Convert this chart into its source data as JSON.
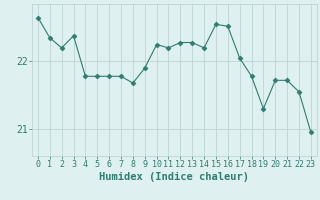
{
  "x": [
    0,
    1,
    2,
    3,
    4,
    5,
    6,
    7,
    8,
    9,
    10,
    11,
    12,
    13,
    14,
    15,
    16,
    17,
    18,
    19,
    20,
    21,
    22,
    23
  ],
  "y": [
    22.65,
    22.35,
    22.2,
    22.38,
    21.78,
    21.78,
    21.78,
    21.78,
    21.68,
    21.9,
    22.25,
    22.2,
    22.28,
    22.28,
    22.2,
    22.55,
    22.52,
    22.05,
    21.78,
    21.3,
    21.72,
    21.72,
    21.55,
    20.95
  ],
  "line_color": "#2e7d6e",
  "marker": "D",
  "marker_size": 2.5,
  "bg_color": "#dff0f0",
  "grid_color": "#b8d0d0",
  "xlabel": "Humidex (Indice chaleur)",
  "yticks": [
    21,
    22
  ],
  "ylim": [
    20.6,
    22.85
  ],
  "xlim": [
    -0.5,
    23.5
  ],
  "tick_color": "#2e7d6e",
  "label_color": "#2e7d6e",
  "font_size_xlabel": 7.5,
  "font_size_xtick": 6,
  "font_size_ytick": 7
}
